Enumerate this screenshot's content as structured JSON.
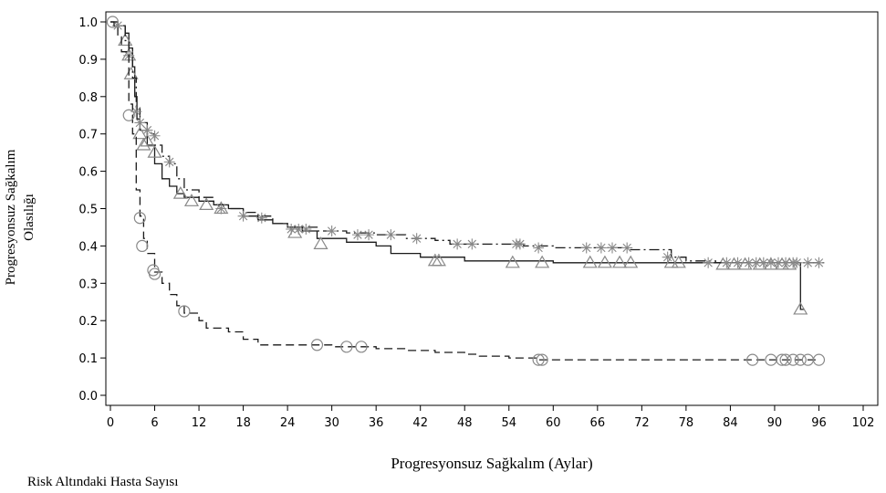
{
  "chart_data": {
    "type": "line",
    "title": "",
    "xlabel": "Progresyonsuz Sağkalım (Aylar)",
    "ylabel_line1": "Progresyonsuz Sağkalım",
    "ylabel_line2": "Olasılığı",
    "xlim": [
      0,
      102
    ],
    "ylim": [
      0,
      1.0
    ],
    "xticks": [
      "0",
      "6",
      "12",
      "18",
      "24",
      "30",
      "36",
      "42",
      "48",
      "54",
      "60",
      "66",
      "72",
      "78",
      "84",
      "90",
      "96",
      "102"
    ],
    "yticks": [
      "0.0",
      "0.1",
      "0.2",
      "0.3",
      "0.4",
      "0.5",
      "0.6",
      "0.7",
      "0.8",
      "0.9",
      "1.0"
    ],
    "grid": false,
    "series": [
      {
        "style": "solid",
        "marker": "triangle",
        "steps": [
          [
            0,
            1.0
          ],
          [
            1,
            0.99
          ],
          [
            2,
            0.97
          ],
          [
            2.5,
            0.93
          ],
          [
            3,
            0.88
          ],
          [
            3.3,
            0.8
          ],
          [
            3.6,
            0.74
          ],
          [
            4,
            0.71
          ],
          [
            5,
            0.67
          ],
          [
            6,
            0.62
          ],
          [
            7,
            0.58
          ],
          [
            8,
            0.56
          ],
          [
            9,
            0.54
          ],
          [
            10,
            0.53
          ],
          [
            12,
            0.52
          ],
          [
            14,
            0.51
          ],
          [
            16,
            0.5
          ],
          [
            18,
            0.48
          ],
          [
            20,
            0.47
          ],
          [
            22,
            0.46
          ],
          [
            24,
            0.45
          ],
          [
            26,
            0.44
          ],
          [
            28,
            0.42
          ],
          [
            32,
            0.41
          ],
          [
            36,
            0.4
          ],
          [
            38,
            0.38
          ],
          [
            42,
            0.37
          ],
          [
            48,
            0.36
          ],
          [
            60,
            0.355
          ],
          [
            84,
            0.355
          ],
          [
            93.5,
            0.355
          ],
          [
            93.5,
            0.23
          ],
          [
            94,
            0.23
          ]
        ],
        "censor": [
          [
            2,
            0.95
          ],
          [
            2.5,
            0.91
          ],
          [
            2.8,
            0.86
          ],
          [
            4,
            0.7
          ],
          [
            4.5,
            0.67
          ],
          [
            5,
            0.68
          ],
          [
            6,
            0.65
          ],
          [
            9.5,
            0.54
          ],
          [
            11,
            0.52
          ],
          [
            13,
            0.51
          ],
          [
            15,
            0.5
          ],
          [
            25,
            0.435
          ],
          [
            28.5,
            0.405
          ],
          [
            44,
            0.36
          ],
          [
            44.5,
            0.36
          ],
          [
            54.5,
            0.355
          ],
          [
            58.5,
            0.355
          ],
          [
            65,
            0.355
          ],
          [
            67,
            0.355
          ],
          [
            69,
            0.355
          ],
          [
            70.5,
            0.355
          ],
          [
            76,
            0.355
          ],
          [
            77,
            0.355
          ],
          [
            83,
            0.35
          ],
          [
            84.5,
            0.35
          ],
          [
            86,
            0.35
          ],
          [
            88,
            0.35
          ],
          [
            89.5,
            0.35
          ],
          [
            91,
            0.35
          ],
          [
            92,
            0.35
          ],
          [
            93.5,
            0.23
          ]
        ]
      },
      {
        "style": "dashdot",
        "marker": "star",
        "steps": [
          [
            0,
            1.0
          ],
          [
            1,
            0.99
          ],
          [
            2,
            0.95
          ],
          [
            2.5,
            0.92
          ],
          [
            3,
            0.85
          ],
          [
            3.5,
            0.77
          ],
          [
            4,
            0.73
          ],
          [
            5,
            0.7
          ],
          [
            6,
            0.67
          ],
          [
            7,
            0.64
          ],
          [
            8,
            0.62
          ],
          [
            9,
            0.58
          ],
          [
            10,
            0.55
          ],
          [
            12,
            0.53
          ],
          [
            14,
            0.51
          ],
          [
            16,
            0.5
          ],
          [
            18,
            0.49
          ],
          [
            20,
            0.48
          ],
          [
            22,
            0.46
          ],
          [
            24,
            0.45
          ],
          [
            28,
            0.44
          ],
          [
            32,
            0.435
          ],
          [
            36,
            0.43
          ],
          [
            40,
            0.42
          ],
          [
            44,
            0.415
          ],
          [
            46,
            0.405
          ],
          [
            52,
            0.405
          ],
          [
            56,
            0.4
          ],
          [
            60,
            0.395
          ],
          [
            70,
            0.39
          ],
          [
            76,
            0.37
          ],
          [
            78,
            0.36
          ],
          [
            82,
            0.355
          ],
          [
            97,
            0.355
          ]
        ],
        "censor": [
          [
            1,
            0.99
          ],
          [
            2.5,
            0.91
          ],
          [
            3.5,
            0.76
          ],
          [
            4,
            0.73
          ],
          [
            5,
            0.71
          ],
          [
            6,
            0.695
          ],
          [
            8,
            0.625
          ],
          [
            15,
            0.5
          ],
          [
            18,
            0.48
          ],
          [
            20.5,
            0.475
          ],
          [
            24.5,
            0.445
          ],
          [
            25.5,
            0.445
          ],
          [
            26.5,
            0.445
          ],
          [
            30,
            0.44
          ],
          [
            33.5,
            0.43
          ],
          [
            35,
            0.43
          ],
          [
            38,
            0.43
          ],
          [
            41.5,
            0.42
          ],
          [
            47,
            0.405
          ],
          [
            49,
            0.405
          ],
          [
            55,
            0.405
          ],
          [
            55.5,
            0.405
          ],
          [
            58,
            0.395
          ],
          [
            64.5,
            0.395
          ],
          [
            66.5,
            0.395
          ],
          [
            68,
            0.395
          ],
          [
            70,
            0.395
          ],
          [
            75.5,
            0.37
          ],
          [
            81,
            0.355
          ],
          [
            83.5,
            0.355
          ],
          [
            85,
            0.355
          ],
          [
            86.5,
            0.355
          ],
          [
            87.5,
            0.355
          ],
          [
            88.5,
            0.355
          ],
          [
            89.5,
            0.355
          ],
          [
            90.5,
            0.355
          ],
          [
            91.5,
            0.355
          ],
          [
            92.5,
            0.355
          ],
          [
            93,
            0.355
          ],
          [
            94.5,
            0.355
          ],
          [
            96,
            0.355
          ]
        ]
      },
      {
        "style": "dashed",
        "marker": "circle",
        "steps": [
          [
            0,
            1.0
          ],
          [
            0.5,
            0.99
          ],
          [
            1,
            0.96
          ],
          [
            1.5,
            0.92
          ],
          [
            2.5,
            0.78
          ],
          [
            3,
            0.7
          ],
          [
            3.5,
            0.55
          ],
          [
            4,
            0.48
          ],
          [
            4.5,
            0.42
          ],
          [
            5,
            0.38
          ],
          [
            6,
            0.33
          ],
          [
            7,
            0.3
          ],
          [
            8,
            0.27
          ],
          [
            9,
            0.24
          ],
          [
            10,
            0.22
          ],
          [
            12,
            0.2
          ],
          [
            13,
            0.18
          ],
          [
            16,
            0.17
          ],
          [
            18,
            0.15
          ],
          [
            20,
            0.135
          ],
          [
            28,
            0.135
          ],
          [
            30,
            0.13
          ],
          [
            36,
            0.125
          ],
          [
            40,
            0.12
          ],
          [
            44,
            0.115
          ],
          [
            48,
            0.11
          ],
          [
            50,
            0.105
          ],
          [
            54,
            0.1
          ],
          [
            58,
            0.095
          ],
          [
            96,
            0.095
          ]
        ],
        "censor": [
          [
            0.3,
            1.0
          ],
          [
            2.5,
            0.75
          ],
          [
            4,
            0.475
          ],
          [
            4.3,
            0.4
          ],
          [
            5.8,
            0.335
          ],
          [
            6,
            0.325
          ],
          [
            10,
            0.225
          ],
          [
            28,
            0.135
          ],
          [
            32,
            0.13
          ],
          [
            34,
            0.13
          ],
          [
            58,
            0.095
          ],
          [
            58.5,
            0.095
          ],
          [
            87,
            0.095
          ],
          [
            89.5,
            0.095
          ],
          [
            91,
            0.095
          ],
          [
            91.5,
            0.095
          ],
          [
            92.5,
            0.095
          ],
          [
            93.5,
            0.095
          ],
          [
            94.5,
            0.095
          ],
          [
            96,
            0.095
          ]
        ]
      }
    ]
  },
  "footer": {
    "risk_label": "Risk Altındaki Hasta Sayısı"
  }
}
